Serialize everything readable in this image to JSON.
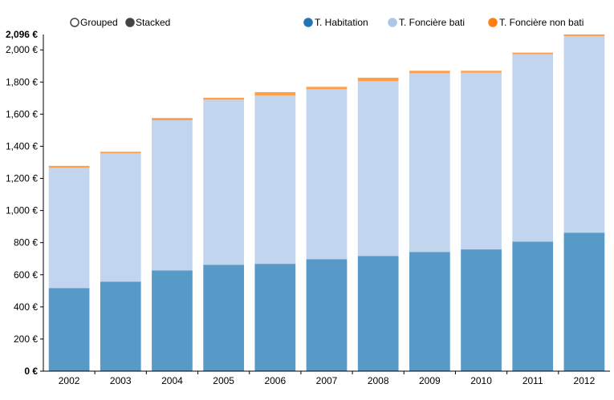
{
  "controls": {
    "grouped_label": "Grouped",
    "stacked_label": "Stacked",
    "selected": "stacked"
  },
  "chart_data": {
    "type": "bar",
    "stacked": true,
    "categories": [
      "2002",
      "2003",
      "2004",
      "2005",
      "2006",
      "2007",
      "2008",
      "2009",
      "2010",
      "2011",
      "2012"
    ],
    "series": [
      {
        "name": "T. Habitation",
        "color": "#1f77b4",
        "values": [
          517,
          557,
          627,
          662,
          668,
          697,
          717,
          742,
          758,
          806,
          862
        ]
      },
      {
        "name": "T. Foncière bati",
        "color": "#aec7e8",
        "values": [
          749,
          799,
          935,
          1028,
          1047,
          1058,
          1088,
          1113,
          1100,
          1167,
          1224
        ]
      },
      {
        "name": "T. Foncière non bati",
        "color": "#ff7f0e",
        "values": [
          12,
          10,
          14,
          12,
          22,
          15,
          22,
          15,
          12,
          10,
          10
        ]
      }
    ],
    "yticks": [
      "0 €",
      "200 €",
      "400 €",
      "600 €",
      "800 €",
      "1,000 €",
      "1,200 €",
      "1,400 €",
      "1,600 €",
      "1,800 €",
      "2,000 €"
    ],
    "ymax_label": "2,096 €",
    "ylim": [
      0,
      2096
    ],
    "grid": false,
    "legend_position": "top-right"
  }
}
